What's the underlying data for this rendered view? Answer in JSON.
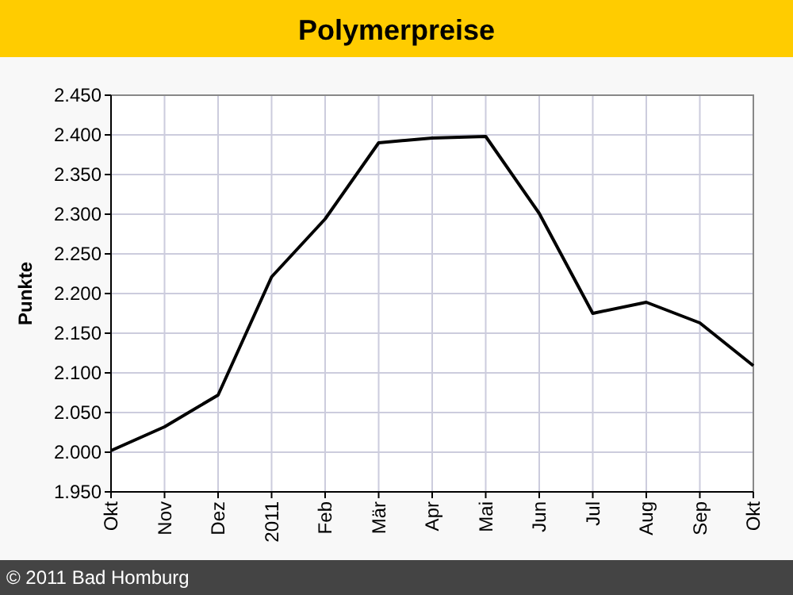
{
  "chart_data": {
    "type": "line",
    "title": "Polymerpreise",
    "ylabel": "Punkte",
    "categories": [
      "Okt",
      "Nov",
      "Dez",
      "2011",
      "Feb",
      "Mär",
      "Apr",
      "Mai",
      "Jun",
      "Jul",
      "Aug",
      "Sep",
      "Okt"
    ],
    "series": [
      {
        "color": "#000000",
        "values": [
          2.002,
          2.032,
          2.072,
          2.221,
          2.294,
          2.39,
          2.396,
          2.398,
          2.301,
          2.175,
          2.189,
          2.163,
          2.109
        ]
      }
    ],
    "ylim": [
      1.95,
      2.45
    ],
    "yticks": [
      {
        "value": 1.95,
        "label": "1.950"
      },
      {
        "value": 2.0,
        "label": "2.000"
      },
      {
        "value": 2.05,
        "label": "2.050"
      },
      {
        "value": 2.1,
        "label": "2.100"
      },
      {
        "value": 2.15,
        "label": "2.150"
      },
      {
        "value": 2.2,
        "label": "2.200"
      },
      {
        "value": 2.25,
        "label": "2.250"
      },
      {
        "value": 2.3,
        "label": "2.300"
      },
      {
        "value": 2.35,
        "label": "2.350"
      },
      {
        "value": 2.4,
        "label": "2.400"
      },
      {
        "value": 2.45,
        "label": "2.450"
      }
    ],
    "grid": true,
    "annotations": [
      "© 2011 Bad Homburg"
    ]
  }
}
